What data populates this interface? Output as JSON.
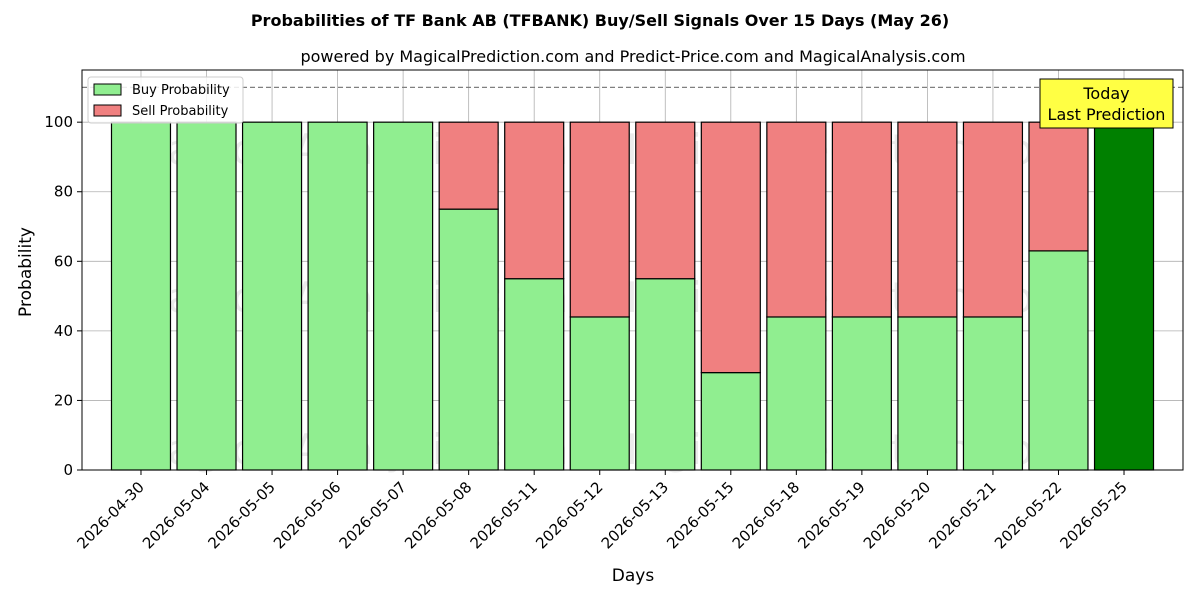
{
  "chart_data": {
    "type": "bar",
    "stacked": true,
    "title": "Probabilities of TF Bank AB (TFBANK) Buy/Sell Signals Over 15 Days (May 26)",
    "subtitle": "powered by MagicalPrediction.com and Predict-Price.com and MagicalAnalysis.com",
    "xlabel": "Days",
    "ylabel": "Probability",
    "ylim": [
      0,
      115
    ],
    "yticks": [
      0,
      20,
      40,
      60,
      80,
      100
    ],
    "reference_line": 110,
    "grid": true,
    "legend_position": "top-left",
    "categories": [
      "2026-04-30",
      "2026-05-04",
      "2026-05-05",
      "2026-05-06",
      "2026-05-07",
      "2026-05-08",
      "2026-05-11",
      "2026-05-12",
      "2026-05-13",
      "2026-05-15",
      "2026-05-18",
      "2026-05-19",
      "2026-05-20",
      "2026-05-21",
      "2026-05-22",
      "2026-05-25"
    ],
    "series": [
      {
        "name": "Buy Probability",
        "color": "#90ee90",
        "values": [
          100,
          100,
          100,
          100,
          100,
          75,
          55,
          44,
          55,
          28,
          44,
          44,
          44,
          44,
          63,
          100
        ]
      },
      {
        "name": "Sell Probability",
        "color": "#f08080",
        "values": [
          0,
          0,
          0,
          0,
          0,
          25,
          45,
          56,
          45,
          72,
          56,
          56,
          56,
          56,
          37,
          0
        ]
      }
    ],
    "highlight": {
      "index": 15,
      "color": "#008000"
    },
    "annotation": {
      "lines": [
        "Today",
        "Last Prediction"
      ],
      "bg": "#ffff44"
    },
    "watermarks": [
      "MagicalAnalysis.com",
      "MagicalPrediction.com"
    ]
  }
}
